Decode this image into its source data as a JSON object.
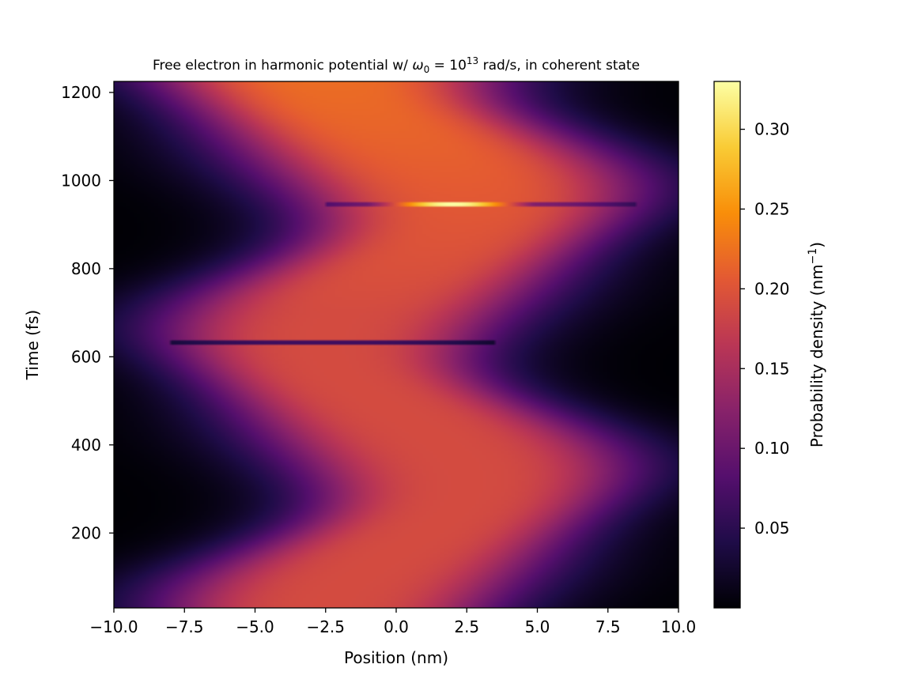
{
  "chart_data": {
    "type": "heatmap",
    "title": {
      "prefix": "Free electron in harmonic potential w/ ",
      "omega": "ω",
      "omega_sub": "0",
      "eq": " = 10",
      "exp": "13",
      "suffix": " rad/s, in coherent state"
    },
    "xlabel": "Position (nm)",
    "ylabel": "Time (fs)",
    "xlim": [
      -10.0,
      10.0
    ],
    "ylim": [
      30,
      1225
    ],
    "xticks": [
      -10.0,
      -7.5,
      -5.0,
      -2.5,
      0.0,
      2.5,
      5.0,
      7.5,
      10.0
    ],
    "xtick_labels": [
      "−10.0",
      "−7.5",
      "−5.0",
      "−2.5",
      "0.0",
      "2.5",
      "5.0",
      "7.5",
      "10.0"
    ],
    "yticks": [
      200,
      400,
      600,
      800,
      1000,
      1200
    ],
    "ytick_labels": [
      "200",
      "400",
      "600",
      "800",
      "1000",
      "1200"
    ],
    "colorbar": {
      "label_prefix": "Probability density (nm",
      "label_exp": "−1",
      "label_suffix": ")",
      "range": [
        0.0,
        0.33
      ],
      "ticks": [
        0.05,
        0.1,
        0.15,
        0.2,
        0.25,
        0.3
      ],
      "tick_labels": [
        "0.05",
        "0.10",
        "0.15",
        "0.20",
        "0.25",
        "0.30"
      ],
      "colormap": "inferno",
      "colors": [
        "#000004",
        "#1f0c48",
        "#550f6d",
        "#88226a",
        "#ba3655",
        "#e35933",
        "#f98e09",
        "#f9cb35",
        "#fcffa4"
      ]
    },
    "wavepacket": {
      "center_mean_nm": 0.0,
      "oscillation_amplitude_nm": 2.5,
      "period_fs": 628,
      "first_max_time_fs": 314,
      "peak_density": 0.19,
      "late_peak_density": 0.22
    },
    "artifacts": [
      {
        "time_fs": 632,
        "x_range_nm": [
          -8.0,
          3.5
        ],
        "effect": "dark streak"
      },
      {
        "time_fs": 948,
        "x_range_nm": [
          -2.5,
          8.5
        ],
        "effect": "bright streak",
        "peak_density": 0.33
      }
    ],
    "grid": false,
    "legend": "none"
  }
}
